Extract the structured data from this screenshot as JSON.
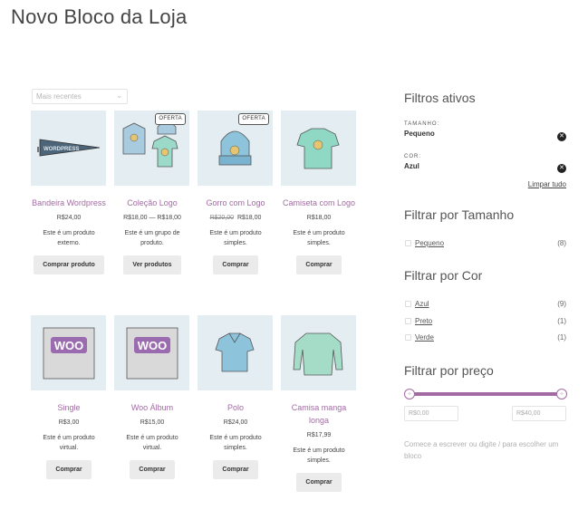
{
  "page": {
    "title": "Novo Bloco da Loja"
  },
  "sort": {
    "selected": "Mais recentes"
  },
  "products": [
    {
      "name": "Bandeira Wordpress",
      "price": "R$24,00",
      "desc": "Este é um produto externo.",
      "button": "Comprar produto",
      "badge": ""
    },
    {
      "name": "Coleção Logo",
      "price": "R$18,00 — R$18,00",
      "desc": "Este é um grupo de produto.",
      "button": "Ver produtos",
      "badge": "OFERTA"
    },
    {
      "name": "Gorro com Logo",
      "price_old": "R$20,00",
      "price": "R$18,00",
      "desc": "Este é um produto simples.",
      "button": "Comprar",
      "badge": "OFERTA"
    },
    {
      "name": "Camiseta com Logo",
      "price": "R$18,00",
      "desc": "Este é um produto simples.",
      "button": "Comprar",
      "badge": ""
    },
    {
      "name": "Single",
      "price": "R$3,00",
      "desc": "Este é um produto virtual.",
      "button": "Comprar",
      "badge": ""
    },
    {
      "name": "Woo Álbum",
      "price": "R$15,00",
      "desc": "Este é um produto virtual.",
      "button": "Comprar",
      "badge": ""
    },
    {
      "name": "Polo",
      "price": "R$24,00",
      "desc": "Este é um produto simples.",
      "button": "Comprar",
      "badge": ""
    },
    {
      "name": "Camisa manga longa",
      "price": "R$17,99",
      "desc": "Este é um produto simples.",
      "button": "Comprar",
      "badge": ""
    }
  ],
  "sidebar": {
    "active_filters": {
      "title": "Filtros ativos",
      "items": [
        {
          "label": "TAMANHO:",
          "value": "Pequeno"
        },
        {
          "label": "COR:",
          "value": "Azul"
        }
      ],
      "clear_all": "Limpar tudo"
    },
    "size_filter": {
      "title": "Filtrar por Tamanho",
      "options": [
        {
          "label": "Pequeno",
          "count": "(8)"
        }
      ]
    },
    "color_filter": {
      "title": "Filtrar por Cor",
      "options": [
        {
          "label": "Azul",
          "count": "(9)"
        },
        {
          "label": "Preto",
          "count": "(1)"
        },
        {
          "label": "Verde",
          "count": "(1)"
        }
      ]
    },
    "price_filter": {
      "title": "Filtrar por preço",
      "min": "R$0,00",
      "max": "R$40,00",
      "range_start": 0,
      "range_end": 1
    },
    "hint": "Comece a escrever ou digite / para escolher um bloco"
  },
  "colors": {
    "accent": "#a36ba3",
    "thumb_bg": "#e4edf2"
  },
  "icons": {
    "remove": "close-circle-icon",
    "dropdown": "chevron-down-icon",
    "slider": "slider-handle-icon"
  }
}
